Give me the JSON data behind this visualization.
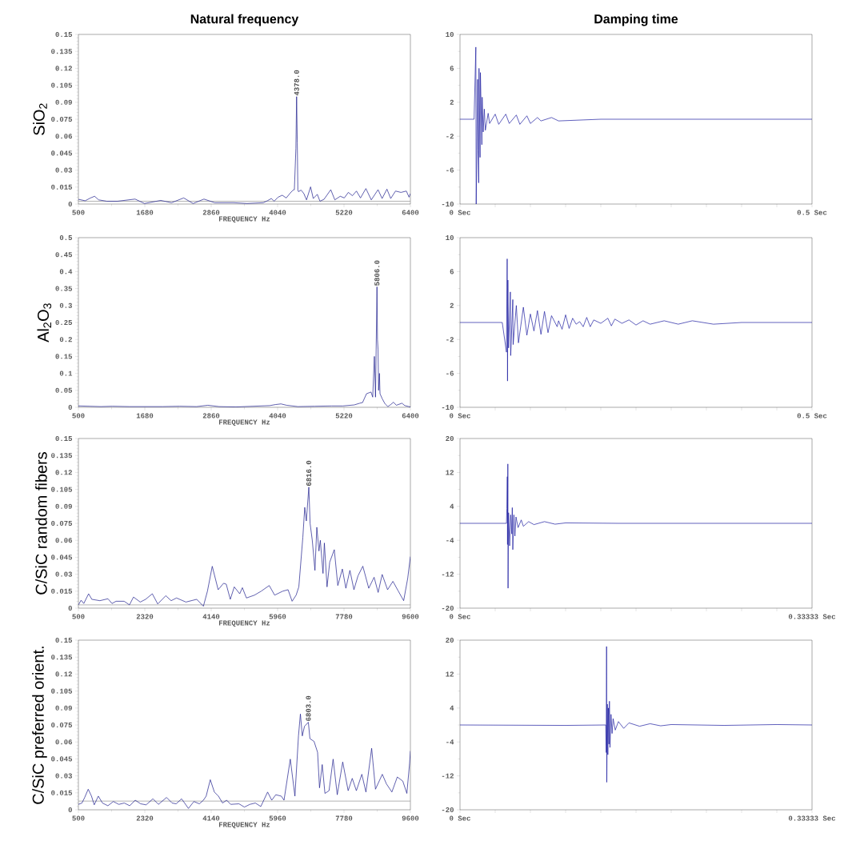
{
  "chart_data": [
    {
      "type": "line",
      "title": "Natural frequency",
      "ylabel": "SiO$_{2}$",
      "xlabel": "FREQUENCY Hz",
      "color": "#1c1c8c",
      "xlim": [
        500,
        6400
      ],
      "ylim": [
        0,
        0.15
      ],
      "xticks": [
        500,
        1680,
        2860,
        4040,
        5220,
        6400
      ],
      "yticks": [
        0,
        0.015,
        0.03,
        0.045,
        0.06,
        0.075,
        0.09,
        0.105,
        0.12,
        0.135,
        0.15
      ],
      "x": [
        500,
        620,
        716,
        788,
        860,
        1004,
        1196,
        1507,
        1675,
        1963,
        2155,
        2371,
        2539,
        2731,
        2922,
        3258,
        3498,
        3786,
        3858,
        3930,
        3978,
        4050,
        4122,
        4194,
        4266,
        4314,
        4338,
        4365,
        4378,
        4390,
        4400,
        4410,
        4458,
        4506,
        4554,
        4626,
        4674,
        4745,
        4793,
        4865,
        4985,
        5057,
        5153,
        5225,
        5297,
        5369,
        5441,
        5513,
        5609,
        5705,
        5825,
        5897,
        5983,
        6050,
        6136,
        6232,
        6328,
        6376,
        6400
      ],
      "values": [
        0.0042,
        0.0029,
        0.0054,
        0.0069,
        0.0037,
        0.0025,
        0.0025,
        0.0044,
        0.0005,
        0.0032,
        0.0012,
        0.0054,
        0.0005,
        0.0044,
        0.0012,
        0.0012,
        0.0005,
        0.0012,
        0.0029,
        0.0049,
        0.0025,
        0.0061,
        0.0078,
        0.0054,
        0.0098,
        0.0123,
        0.0127,
        0.049,
        0.095,
        0.054,
        0.0123,
        0.011,
        0.0123,
        0.0093,
        0.0037,
        0.0152,
        0.0049,
        0.0086,
        0.0025,
        0.0042,
        0.0127,
        0.0037,
        0.0069,
        0.0054,
        0.0103,
        0.0074,
        0.0115,
        0.0054,
        0.0137,
        0.0037,
        0.0127,
        0.0049,
        0.0132,
        0.0049,
        0.0115,
        0.0103,
        0.0115,
        0.0061,
        0.0093
      ],
      "annotations": [
        {
          "text": "4378.0",
          "x": 4378,
          "y": 0.095
        }
      ],
      "ref_lines": [
        {
          "axis": "y",
          "value": 0.0025,
          "color": "#a0a0a0"
        }
      ]
    },
    {
      "type": "line",
      "title": "Damping time",
      "color": "#1c1ca0",
      "xlim": [
        0,
        0.5
      ],
      "ylim": [
        -10,
        10
      ],
      "xticks": [
        {
          "value": 0,
          "label": "0 Sec"
        },
        {
          "value": 0.05,
          "label": null
        },
        {
          "value": 0.1,
          "label": null
        },
        {
          "value": 0.15,
          "label": null
        },
        {
          "value": 0.2,
          "label": null
        },
        {
          "value": 0.25,
          "label": null
        },
        {
          "value": 0.3,
          "label": null
        },
        {
          "value": 0.35,
          "label": null
        },
        {
          "value": 0.4,
          "label": null
        },
        {
          "value": 0.45,
          "label": null
        },
        {
          "value": 0.5,
          "label": "0.5 Sec"
        }
      ],
      "yticks": [
        -10,
        -6,
        -2,
        2,
        6,
        10
      ],
      "x": [
        0,
        0.02,
        0.0225,
        0.023,
        0.025,
        0.0255,
        0.0265,
        0.027,
        0.0285,
        0.029,
        0.031,
        0.0315,
        0.033,
        0.0345,
        0.036,
        0.04,
        0.042,
        0.05,
        0.055,
        0.065,
        0.07,
        0.08,
        0.085,
        0.095,
        0.1,
        0.11,
        0.115,
        0.13,
        0.14,
        0.2,
        0.5
      ],
      "values": [
        0,
        0,
        8.5,
        -10,
        4.7,
        -3.6,
        -7.5,
        6,
        -4.5,
        5.5,
        -3,
        2.6,
        -1.5,
        1.2,
        -1.3,
        0.7,
        -0.5,
        0.6,
        -0.6,
        0.6,
        -0.5,
        0.5,
        -0.6,
        0.4,
        -0.5,
        0.2,
        -0.2,
        0.2,
        -0.2,
        0,
        0
      ]
    },
    {
      "type": "line",
      "ylabel": "Al$_{2}$O$_{3}$",
      "xlabel": "FREQUENCY Hz",
      "color": "#1c1c8c",
      "xlim": [
        500,
        6400
      ],
      "ylim": [
        0,
        0.5
      ],
      "xticks": [
        500,
        1680,
        2860,
        4040,
        5220,
        6400
      ],
      "yticks": [
        0,
        0.05,
        0.1,
        0.15,
        0.2,
        0.25,
        0.3,
        0.35,
        0.4,
        0.45,
        0.5
      ],
      "x": [
        500,
        700,
        900,
        1100,
        1400,
        1700,
        2000,
        2300,
        2600,
        2800,
        3000,
        3300,
        3600,
        3900,
        4000,
        4100,
        4200,
        4400,
        4700,
        5000,
        5200,
        5400,
        5500,
        5550,
        5620,
        5700,
        5730,
        5760,
        5780,
        5806,
        5815,
        5825,
        5835,
        5850,
        5860,
        5900,
        5950,
        6000,
        6050,
        6100,
        6150,
        6250,
        6300,
        6400
      ],
      "values": [
        0.004,
        0.003,
        0.002,
        0.003,
        0.002,
        0.002,
        0.002,
        0.003,
        0.002,
        0.006,
        0.002,
        0.001,
        0.003,
        0.005,
        0.008,
        0.01,
        0.006,
        0.002,
        0.003,
        0.004,
        0.004,
        0.007,
        0.012,
        0.014,
        0.04,
        0.045,
        0.03,
        0.15,
        0.03,
        0.355,
        0.2,
        0.17,
        0.05,
        0.1,
        0.04,
        0.025,
        0.01,
        0.002,
        0.008,
        0.015,
        0.006,
        0.012,
        0.005,
        0.001
      ],
      "annotations": [
        {
          "text": "5806.0",
          "x": 5806,
          "y": 0.355
        }
      ]
    },
    {
      "type": "line",
      "color": "#1c1ca0",
      "xlim": [
        0,
        0.5
      ],
      "ylim": [
        -10,
        10
      ],
      "xticks": [
        {
          "value": 0,
          "label": "0 Sec"
        },
        {
          "value": 0.05,
          "label": null
        },
        {
          "value": 0.1,
          "label": null
        },
        {
          "value": 0.15,
          "label": null
        },
        {
          "value": 0.2,
          "label": null
        },
        {
          "value": 0.25,
          "label": null
        },
        {
          "value": 0.3,
          "label": null
        },
        {
          "value": 0.35,
          "label": null
        },
        {
          "value": 0.4,
          "label": null
        },
        {
          "value": 0.45,
          "label": null
        },
        {
          "value": 0.5,
          "label": "0.5 Sec"
        }
      ],
      "yticks": [
        -10,
        -6,
        -2,
        2,
        6,
        10
      ],
      "x": [
        0,
        0.06,
        0.066,
        0.067,
        0.0675,
        0.068,
        0.069,
        0.0715,
        0.072,
        0.075,
        0.0755,
        0.08,
        0.083,
        0.09,
        0.095,
        0.1,
        0.105,
        0.11,
        0.115,
        0.12,
        0.125,
        0.13,
        0.138,
        0.14,
        0.145,
        0.15,
        0.155,
        0.16,
        0.165,
        0.17,
        0.175,
        0.18,
        0.185,
        0.19,
        0.2,
        0.21,
        0.215,
        0.22,
        0.23,
        0.24,
        0.25,
        0.26,
        0.27,
        0.29,
        0.31,
        0.33,
        0.36,
        0.4,
        0.5
      ],
      "values": [
        0,
        0,
        -3.5,
        7.5,
        -6.9,
        5,
        -3,
        3.6,
        -3.9,
        2.7,
        -2.6,
        2,
        -2.4,
        1.8,
        -1.5,
        1,
        -1,
        1.4,
        -1.4,
        1.3,
        -1.2,
        0.8,
        -0.5,
        0.2,
        -0.8,
        0.9,
        -0.7,
        0.5,
        -0.2,
        0.1,
        -0.5,
        0.6,
        -0.5,
        0.3,
        -0.1,
        0.5,
        -0.4,
        0.4,
        -0.1,
        0.3,
        -0.3,
        0.2,
        -0.2,
        0.2,
        -0.2,
        0.2,
        -0.2,
        0,
        0
      ]
    },
    {
      "type": "line",
      "ylabel": "C/SiC random fibers",
      "xlabel": "FREQUENCY Hz",
      "color": "#1c1c8c",
      "xlim": [
        500,
        9600
      ],
      "ylim": [
        0,
        0.15
      ],
      "xticks": [
        500,
        2320,
        4140,
        5960,
        7780,
        9600
      ],
      "yticks": [
        0,
        0.015,
        0.03,
        0.045,
        0.06,
        0.075,
        0.09,
        0.105,
        0.12,
        0.135,
        0.15
      ],
      "x": [
        500,
        574,
        647,
        780,
        868,
        1089,
        1310,
        1421,
        1532,
        1753,
        1900,
        2010,
        2195,
        2342,
        2526,
        2674,
        2895,
        3042,
        3189,
        3447,
        3742,
        3926,
        4037,
        4169,
        4331,
        4479,
        4552,
        4663,
        4773,
        4921,
        4995,
        5105,
        5326,
        5510,
        5731,
        5879,
        6100,
        6247,
        6358,
        6468,
        6542,
        6652,
        6704,
        6748,
        6816,
        6851,
        6910,
        6984,
        7035,
        7094,
        7131,
        7205,
        7242,
        7315,
        7389,
        7514,
        7610,
        7735,
        7831,
        7942,
        8052,
        8163,
        8296,
        8458,
        8605,
        8716,
        8826,
        8974,
        9121,
        9268,
        9415,
        9526,
        9600
      ],
      "values": [
        0.0029,
        0.007,
        0.0041,
        0.0127,
        0.0078,
        0.0066,
        0.0083,
        0.0041,
        0.0061,
        0.0061,
        0.0029,
        0.0098,
        0.0054,
        0.0078,
        0.0127,
        0.0037,
        0.011,
        0.0066,
        0.009,
        0.0054,
        0.0078,
        0.0017,
        0.015,
        0.037,
        0.0163,
        0.022,
        0.0212,
        0.0078,
        0.0188,
        0.0127,
        0.0181,
        0.009,
        0.0115,
        0.015,
        0.02,
        0.0115,
        0.015,
        0.0163,
        0.0061,
        0.0115,
        0.0188,
        0.0627,
        0.0891,
        0.0771,
        0.107,
        0.0749,
        0.0602,
        0.0334,
        0.0715,
        0.0505,
        0.06,
        0.0307,
        0.0576,
        0.0188,
        0.0407,
        0.0517,
        0.02,
        0.0346,
        0.0176,
        0.0334,
        0.0163,
        0.0285,
        0.0371,
        0.0176,
        0.0273,
        0.0139,
        0.0298,
        0.0163,
        0.0237,
        0.0151,
        0.0066,
        0.0263,
        0.0456
      ],
      "annotations": [
        {
          "text": "6816.0",
          "x": 6816,
          "y": 0.107
        }
      ],
      "ref_lines": [
        {
          "axis": "y",
          "value": 0.0029,
          "color": "#a0a0a0"
        }
      ]
    },
    {
      "type": "line",
      "color": "#1c1ca0",
      "xlim": [
        0,
        0.33333
      ],
      "ylim": [
        -20,
        20
      ],
      "xticks": [
        {
          "value": 0,
          "label": "0 Sec"
        },
        {
          "value": 0.03333,
          "label": null
        },
        {
          "value": 0.06667,
          "label": null
        },
        {
          "value": 0.1,
          "label": null
        },
        {
          "value": 0.13333,
          "label": null
        },
        {
          "value": 0.16667,
          "label": null
        },
        {
          "value": 0.2,
          "label": null
        },
        {
          "value": 0.23333,
          "label": null
        },
        {
          "value": 0.26667,
          "label": null
        },
        {
          "value": 0.3,
          "label": null
        },
        {
          "value": 0.33333,
          "label": "0.33333 Sec"
        }
      ],
      "yticks": [
        -20,
        -12,
        -4,
        4,
        12,
        20
      ],
      "x": [
        0,
        0.044,
        0.0444,
        0.0448,
        0.045,
        0.0453,
        0.0455,
        0.046,
        0.047,
        0.048,
        0.049,
        0.0495,
        0.05,
        0.051,
        0.052,
        0.053,
        0.055,
        0.058,
        0.06,
        0.065,
        0.07,
        0.08,
        0.09,
        0.1,
        0.15,
        0.33333
      ],
      "values": [
        0,
        0,
        3.5,
        11,
        -5,
        14,
        -15.3,
        2.5,
        -5.3,
        2,
        -2.5,
        3.7,
        -6.2,
        2,
        -3,
        1.5,
        -1,
        0.8,
        -0.7,
        0.4,
        -0.3,
        0.4,
        -0.2,
        0.1,
        0,
        0
      ]
    },
    {
      "type": "line",
      "ylabel": "C/SiC  preferred orient.",
      "xlabel": "FREQUENCY Hz",
      "color": "#1c1c8c",
      "xlim": [
        500,
        9600
      ],
      "ylim": [
        0,
        0.15
      ],
      "xticks": [
        500,
        2320,
        4140,
        5960,
        7780,
        9600
      ],
      "yticks": [
        0,
        0.015,
        0.03,
        0.045,
        0.06,
        0.075,
        0.09,
        0.105,
        0.12,
        0.135,
        0.15
      ],
      "x": [
        500,
        597,
        672,
        769,
        859,
        934,
        1046,
        1159,
        1308,
        1458,
        1608,
        1757,
        1907,
        2057,
        2206,
        2356,
        2543,
        2693,
        2917,
        3067,
        3179,
        3329,
        3516,
        3665,
        3815,
        3927,
        4002,
        4115,
        4227,
        4339,
        4451,
        4564,
        4676,
        4901,
        5050,
        5200,
        5350,
        5500,
        5686,
        5799,
        5911,
        6061,
        6136,
        6308,
        6435,
        6532,
        6585,
        6637,
        6697,
        6803,
        6846,
        6959,
        7056,
        7109,
        7183,
        7258,
        7370,
        7482,
        7595,
        7745,
        7894,
        8006,
        8119,
        8269,
        8381,
        8538,
        8643,
        8830,
        8942,
        9092,
        9241,
        9391,
        9503,
        9578,
        9600
      ],
      "values": [
        0.0048,
        0.006,
        0.0109,
        0.0182,
        0.0121,
        0.0044,
        0.0121,
        0.006,
        0.0036,
        0.0073,
        0.0048,
        0.006,
        0.0036,
        0.0085,
        0.0053,
        0.0044,
        0.0097,
        0.0048,
        0.0109,
        0.006,
        0.0053,
        0.0097,
        0.0012,
        0.0073,
        0.0053,
        0.0085,
        0.0121,
        0.0266,
        0.0157,
        0.0121,
        0.006,
        0.0085,
        0.0048,
        0.0053,
        0.0024,
        0.0048,
        0.006,
        0.0029,
        0.0157,
        0.0085,
        0.0133,
        0.0121,
        0.0085,
        0.0448,
        0.0121,
        0.0653,
        0.0847,
        0.0653,
        0.0738,
        0.0774,
        0.0629,
        0.0605,
        0.0508,
        0.0194,
        0.04,
        0.0145,
        0.0169,
        0.0448,
        0.0133,
        0.0423,
        0.0169,
        0.0278,
        0.0169,
        0.0314,
        0.0157,
        0.0544,
        0.0182,
        0.0314,
        0.023,
        0.0157,
        0.029,
        0.0254,
        0.0145,
        0.0411,
        0.052
      ],
      "annotations": [
        {
          "text": "6803.0",
          "x": 6803,
          "y": 0.0774
        }
      ],
      "ref_lines": [
        {
          "axis": "y",
          "value": 0.0077,
          "color": "#a0a0a0"
        }
      ]
    },
    {
      "type": "line",
      "color": "#1c1ca0",
      "xlim": [
        0,
        0.33333
      ],
      "ylim": [
        -20,
        20
      ],
      "xticks": [
        {
          "value": 0,
          "label": "0 Sec"
        },
        {
          "value": 0.03333,
          "label": null
        },
        {
          "value": 0.06667,
          "label": null
        },
        {
          "value": 0.1,
          "label": null
        },
        {
          "value": 0.13333,
          "label": null
        },
        {
          "value": 0.16667,
          "label": null
        },
        {
          "value": 0.2,
          "label": null
        },
        {
          "value": 0.23333,
          "label": null
        },
        {
          "value": 0.26667,
          "label": null
        },
        {
          "value": 0.3,
          "label": null
        },
        {
          "value": 0.33333,
          "label": "0.33333 Sec"
        }
      ],
      "yticks": [
        -20,
        -12,
        -4,
        4,
        12,
        20
      ],
      "x": [
        0,
        0.1,
        0.138,
        0.1385,
        0.1388,
        0.139,
        0.1395,
        0.14,
        0.1405,
        0.141,
        0.1415,
        0.142,
        0.143,
        0.144,
        0.145,
        0.147,
        0.15,
        0.155,
        0.16,
        0.17,
        0.18,
        0.19,
        0.2,
        0.25,
        0.3,
        0.33333
      ],
      "values": [
        0,
        -0.1,
        0,
        -6.5,
        18.5,
        -13.5,
        4.9,
        -7,
        4,
        -4.5,
        5.6,
        -5.3,
        2.5,
        -2,
        1.5,
        -1.2,
        0.8,
        -0.8,
        0.5,
        -0.3,
        0.3,
        -0.2,
        0.1,
        -0.1,
        0.1,
        0
      ]
    }
  ]
}
